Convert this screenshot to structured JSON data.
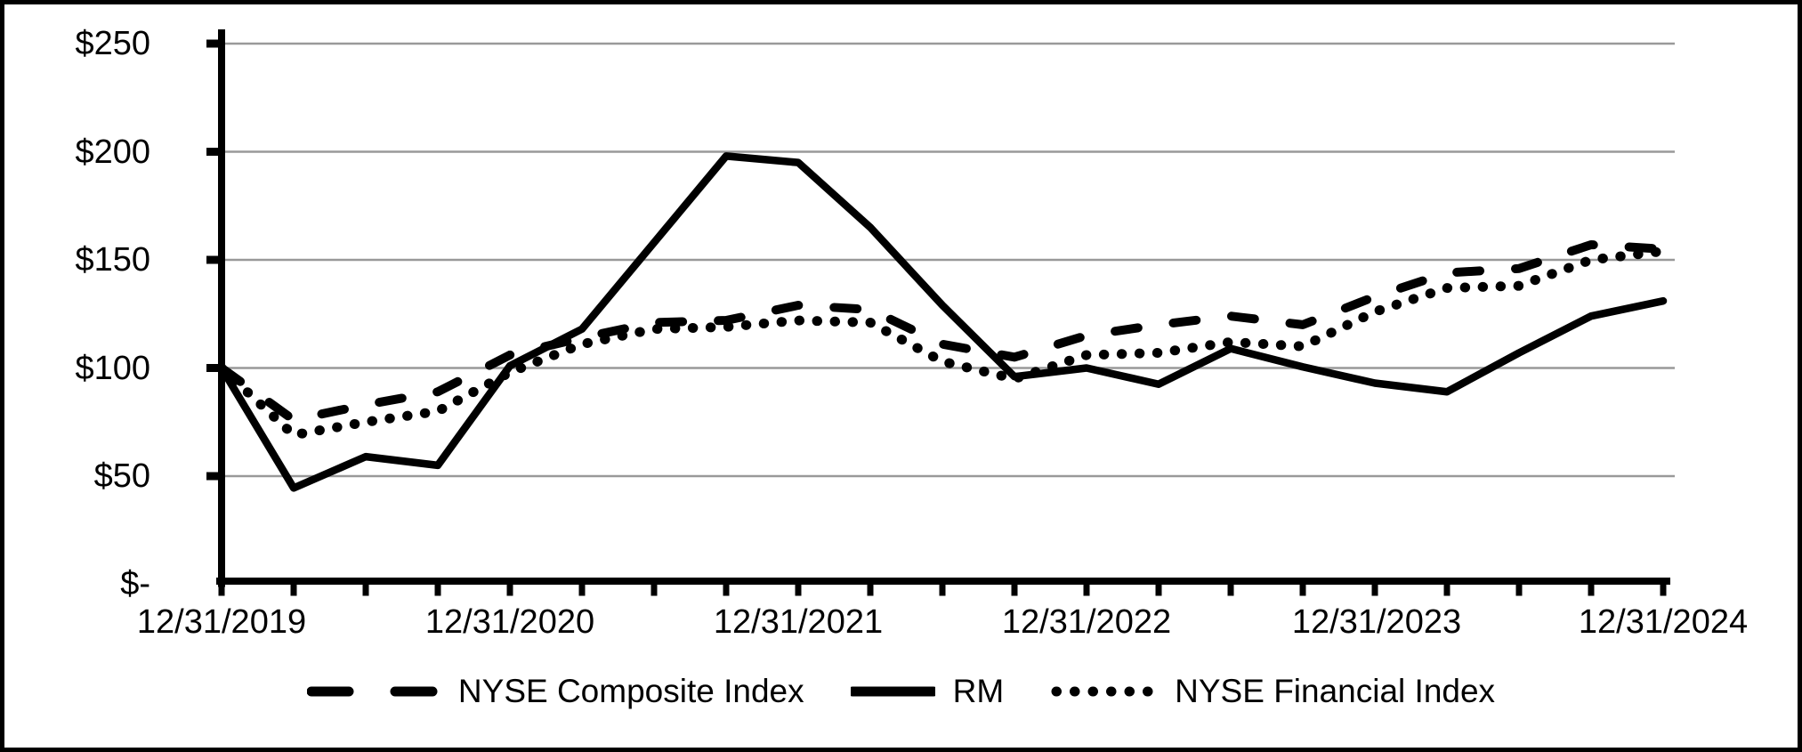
{
  "figure": {
    "background": "#ffffff",
    "border_color": "#000000",
    "line_color": "#000000",
    "gridline_color": "#999999"
  },
  "y_axis": {
    "labels": [
      "$250",
      "$200",
      "$150",
      "$100",
      "$50",
      "$-"
    ],
    "values": [
      250,
      200,
      150,
      100,
      50,
      0
    ]
  },
  "x_axis": {
    "labels": [
      "12/31/2019",
      "12/31/2020",
      "12/31/2021",
      "12/31/2022",
      "12/31/2023",
      "12/31/2024"
    ]
  },
  "legend": {
    "items": [
      {
        "label": "NYSE Composite Index",
        "style": "dashed"
      },
      {
        "label": "RM",
        "style": "solid"
      },
      {
        "label": "NYSE Financial Index",
        "style": "dotted"
      }
    ]
  },
  "chart_data": {
    "type": "line",
    "title": "",
    "xlabel": "",
    "ylabel": "",
    "ylim": [
      0,
      250
    ],
    "y_gridlines": [
      50,
      100,
      150,
      200,
      250
    ],
    "grid": true,
    "legend_position": "bottom",
    "x_start_label": "12/31/2019",
    "x_frequency": "quarterly",
    "x_year_tick_labels": [
      "12/31/2019",
      "12/31/2020",
      "12/31/2021",
      "12/31/2022",
      "12/31/2023",
      "12/31/2024"
    ],
    "series": [
      {
        "name": "NYSE Composite Index",
        "style": "dashed",
        "values": [
          100,
          76,
          83,
          89,
          106,
          114,
          121,
          122,
          129,
          127,
          111,
          105,
          115,
          120,
          124,
          120,
          133,
          144,
          146,
          157,
          155
        ]
      },
      {
        "name": "RM",
        "style": "solid",
        "values": [
          100,
          44.5,
          59,
          55,
          101,
          118,
          158,
          198,
          195,
          165,
          129,
          96,
          100,
          92.5,
          109,
          100.5,
          93,
          89,
          107,
          124,
          131
        ]
      },
      {
        "name": "NYSE Financial Index",
        "style": "dotted",
        "values": [
          100,
          69,
          75,
          80,
          98,
          111,
          118,
          119,
          122,
          121,
          103,
          95,
          106,
          107,
          112,
          110,
          126,
          137,
          138,
          150,
          154
        ]
      }
    ]
  }
}
